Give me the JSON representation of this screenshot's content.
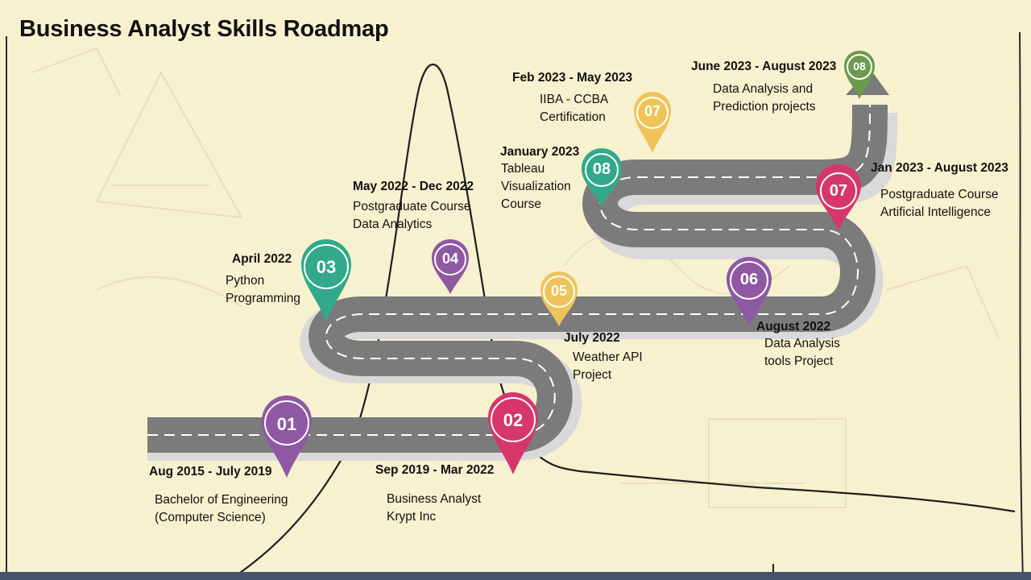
{
  "title": "Business Analyst Skills Roadmap",
  "colors": {
    "background": "#f8f1cf",
    "road": "#7b7b7b",
    "road_shadow": "#d9d9d9",
    "purple": "#8e58a3",
    "pink": "#d6366b",
    "teal": "#31a98a",
    "yellow": "#eec45a",
    "green": "#6c9a4f",
    "footer": "#44546a"
  },
  "milestones": [
    {
      "number": "01",
      "date": "Aug 2015 - July 2019",
      "description": [
        "Bachelor of Engineering",
        "(Computer Science)"
      ],
      "color": "purple"
    },
    {
      "number": "02",
      "date": "Sep 2019 - Mar 2022",
      "description": [
        "Business Analyst",
        "Krypt Inc"
      ],
      "color": "pink"
    },
    {
      "number": "03",
      "date": "April 2022",
      "description": [
        "Python",
        "Programming"
      ],
      "color": "teal"
    },
    {
      "number": "04",
      "date": "May 2022 - Dec 2022",
      "description": [
        "Postgraduate Course",
        "Data Analytics"
      ],
      "color": "purple"
    },
    {
      "number": "05",
      "date": "July 2022",
      "description": [
        "Weather API",
        "Project"
      ],
      "color": "yellow"
    },
    {
      "number": "06",
      "date": "August 2022",
      "description": [
        "Data Analysis",
        "tools Project"
      ],
      "color": "purple"
    },
    {
      "number": "07",
      "date": "Jan 2023 - August 2023",
      "description": [
        "Postgraduate Course",
        "Artificial Intelligence"
      ],
      "color": "pink"
    },
    {
      "number": "08",
      "date": "January 2023",
      "description": [
        "Tableau",
        "Visualization",
        "Course"
      ],
      "color": "teal"
    },
    {
      "number": "07",
      "date": "Feb 2023 - May 2023",
      "description": [
        "IIBA - CCBA",
        "Certification"
      ],
      "color": "yellow"
    },
    {
      "number": "08",
      "date": "June 2023 - August 2023",
      "description": [
        "Data Analysis and",
        "Prediction projects"
      ],
      "color": "green"
    }
  ]
}
